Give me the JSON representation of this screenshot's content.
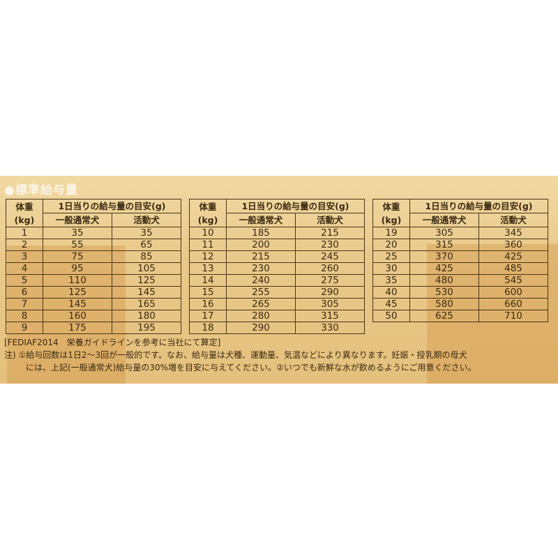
{
  "title": "●標準給与量",
  "headers": {
    "weight": "体重",
    "weight_unit": "(kg)",
    "daily": "1日当りの給与量の目安(g)",
    "normal": "一般通常犬",
    "active": "活動犬"
  },
  "tables": [
    {
      "rows": [
        [
          "1",
          "35",
          "35"
        ],
        [
          "2",
          "55",
          "65"
        ],
        [
          "3",
          "75",
          "85"
        ],
        [
          "4",
          "95",
          "105"
        ],
        [
          "5",
          "110",
          "125"
        ],
        [
          "6",
          "125",
          "145"
        ],
        [
          "7",
          "145",
          "165"
        ],
        [
          "8",
          "160",
          "180"
        ],
        [
          "9",
          "175",
          "195"
        ]
      ]
    },
    {
      "rows": [
        [
          "10",
          "185",
          "215"
        ],
        [
          "11",
          "200",
          "230"
        ],
        [
          "12",
          "215",
          "245"
        ],
        [
          "13",
          "230",
          "260"
        ],
        [
          "14",
          "240",
          "275"
        ],
        [
          "15",
          "255",
          "290"
        ],
        [
          "16",
          "265",
          "305"
        ],
        [
          "17",
          "280",
          "315"
        ],
        [
          "18",
          "290",
          "330"
        ]
      ]
    },
    {
      "rows": [
        [
          "19",
          "305",
          "345"
        ],
        [
          "20",
          "315",
          "360"
        ],
        [
          "25",
          "370",
          "425"
        ],
        [
          "30",
          "425",
          "485"
        ],
        [
          "35",
          "480",
          "545"
        ],
        [
          "40",
          "530",
          "600"
        ],
        [
          "45",
          "580",
          "660"
        ],
        [
          "50",
          "625",
          "710"
        ]
      ]
    }
  ],
  "notes": {
    "source": "[FEDIAF2014　栄養ガイドラインを参考に当社にて算定]",
    "line1": "注) ①給与回数は1日2〜3回が一般的です。なお、給与量は犬種、運動量、気温などにより異なります。妊娠・授乳期の母犬",
    "line2": "には、上記(一般通常犬)給与量の30%増を目安に与えてください。②いつでも新鮮な水が飲めるようにご用意ください。"
  },
  "colors": {
    "panel": "#e9c98a",
    "text": "#3a2a12",
    "title": "#fbf4e6"
  }
}
